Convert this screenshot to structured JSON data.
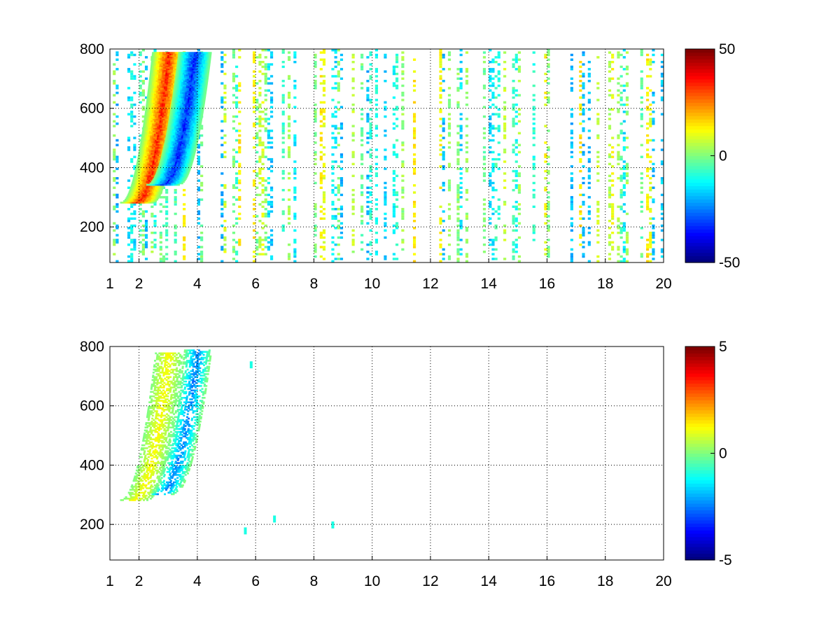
{
  "chart_data": [
    {
      "type": "heatmap",
      "title": "",
      "xlabel": "",
      "ylabel": "",
      "xlim": [
        1,
        20
      ],
      "ylim": [
        80,
        800
      ],
      "xticks": [
        1,
        2,
        4,
        6,
        8,
        10,
        12,
        14,
        16,
        18,
        20
      ],
      "yticks": [
        200,
        400,
        600,
        800
      ],
      "grid": true,
      "colormap": "jet",
      "colorbar": {
        "clim": [
          -50,
          50
        ],
        "ticks": [
          -50,
          0,
          50
        ]
      },
      "features": [
        {
          "desc": "positive ridge",
          "x_start": 1.9,
          "x_end": 3.0,
          "y_start": 280,
          "y_end": 790,
          "value": 40
        },
        {
          "desc": "negative ridge",
          "x_start": 2.8,
          "x_end": 3.9,
          "y_start": 340,
          "y_end": 790,
          "value": -40
        },
        {
          "desc": "noise band",
          "x_start": 1,
          "x_end": 20,
          "y_start": 80,
          "y_end": 800,
          "value_range": [
            -20,
            15
          ]
        }
      ]
    },
    {
      "type": "heatmap",
      "title": "",
      "xlabel": "",
      "ylabel": "",
      "xlim": [
        1,
        20
      ],
      "ylim": [
        80,
        800
      ],
      "xticks": [
        1,
        2,
        4,
        6,
        8,
        10,
        12,
        14,
        16,
        18,
        20
      ],
      "yticks": [
        200,
        400,
        600,
        800
      ],
      "grid": true,
      "colormap": "jet",
      "colorbar": {
        "clim": [
          -5,
          5
        ],
        "ticks": [
          -5,
          0,
          5
        ]
      },
      "features": [
        {
          "desc": "positive ridge",
          "x_start": 1.8,
          "x_end": 3.0,
          "y_start": 280,
          "y_end": 780,
          "value": 1.5
        },
        {
          "desc": "negative ridge",
          "x_start": 2.7,
          "x_end": 4.0,
          "y_start": 300,
          "y_end": 790,
          "value": -3
        },
        {
          "desc": "isolated points",
          "x": [
            5.6,
            5.8,
            6.6,
            8.6
          ],
          "y": [
            180,
            740,
            220,
            200
          ],
          "value": -1
        }
      ]
    }
  ]
}
